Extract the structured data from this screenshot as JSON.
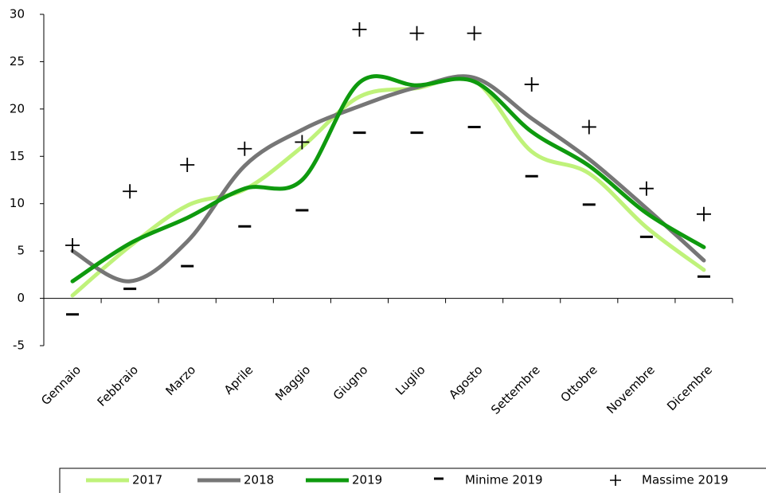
{
  "chart_data": {
    "type": "line",
    "smooth": true,
    "categories": [
      "Gennaio",
      "Febbraio",
      "Marzo",
      "Aprile",
      "Maggio",
      "Giugno",
      "Luglio",
      "Agosto",
      "Settembre",
      "Ottobre",
      "Novembre",
      "Dicembre"
    ],
    "series": [
      {
        "name": "2017",
        "color": "#bff27a",
        "style": "line",
        "values": [
          0.3,
          5.5,
          9.8,
          11.5,
          16,
          21.3,
          22.2,
          23,
          15.5,
          13.2,
          7.5,
          3
        ]
      },
      {
        "name": "2018",
        "color": "#767676",
        "style": "line",
        "values": [
          5,
          1.8,
          6,
          14,
          17.8,
          20.3,
          22.3,
          23.3,
          19,
          14.7,
          9.5,
          4
        ]
      },
      {
        "name": "2019",
        "color": "#0e9a0e",
        "style": "line",
        "values": [
          1.8,
          5.8,
          8.5,
          11.6,
          12.5,
          22.8,
          22.5,
          22.9,
          17.6,
          14,
          9,
          5.4
        ]
      },
      {
        "name": "Minime 2019",
        "color": "#000000",
        "style": "minus",
        "values": [
          -1.7,
          1,
          3.4,
          7.6,
          9.3,
          17.5,
          17.5,
          18.1,
          12.9,
          9.9,
          6.5,
          2.3
        ]
      },
      {
        "name": "Massime 2019",
        "color": "#000000",
        "style": "plus",
        "values": [
          5.6,
          11.3,
          14.1,
          15.8,
          16.5,
          28.4,
          28,
          28,
          22.6,
          18.1,
          11.6,
          8.9
        ]
      }
    ],
    "ylim": [
      -5,
      30
    ],
    "yticks": [
      -5,
      0,
      5,
      10,
      15,
      20,
      25,
      30
    ],
    "grid": false,
    "legend": "bottom"
  }
}
